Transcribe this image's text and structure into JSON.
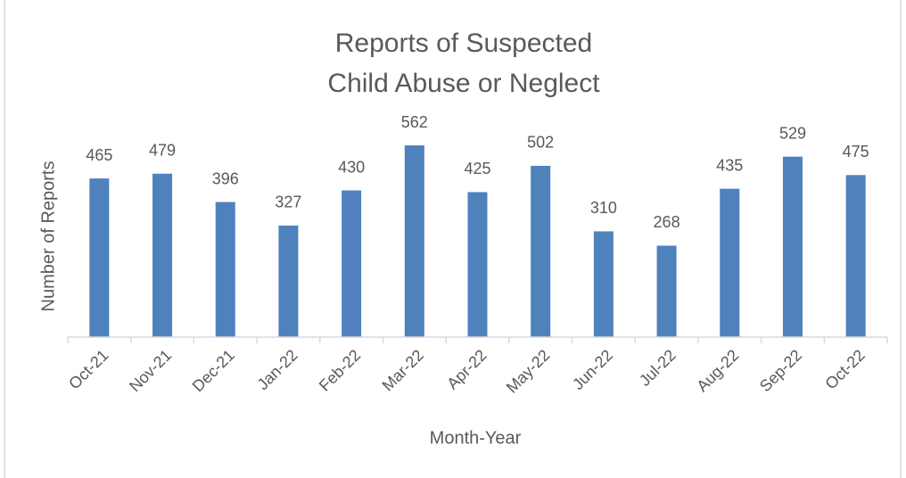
{
  "chart_data": {
    "type": "bar",
    "title": [
      "Reports of Suspected",
      "Child Abuse or Neglect"
    ],
    "x_label": "Month-Year",
    "y_label": "Number of Reports",
    "categories": [
      "Oct-21",
      "Nov-21",
      "Dec-21",
      "Jan-22",
      "Feb-22",
      "Mar-22",
      "Apr-22",
      "May-22",
      "Jun-22",
      "Jul-22",
      "Aug-22",
      "Sep-22",
      "Oct-22"
    ],
    "values": [
      465,
      479,
      396,
      327,
      430,
      562,
      425,
      502,
      310,
      268,
      435,
      529,
      475
    ],
    "color": "#4f81bd",
    "ylim": [
      0,
      600
    ],
    "grid": false
  }
}
